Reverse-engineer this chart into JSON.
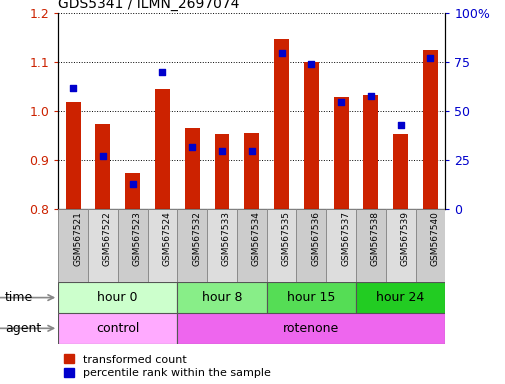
{
  "title": "GDS5341 / ILMN_2697074",
  "samples": [
    "GSM567521",
    "GSM567522",
    "GSM567523",
    "GSM567524",
    "GSM567532",
    "GSM567533",
    "GSM567534",
    "GSM567535",
    "GSM567536",
    "GSM567537",
    "GSM567538",
    "GSM567539",
    "GSM567540"
  ],
  "transformed_count": [
    1.02,
    0.975,
    0.875,
    1.045,
    0.965,
    0.953,
    0.955,
    1.148,
    1.1,
    1.03,
    1.033,
    0.953,
    1.125
  ],
  "percentile_rank": [
    62,
    27,
    13,
    70,
    32,
    30,
    30,
    80,
    74,
    55,
    58,
    43,
    77
  ],
  "ylim_left": [
    0.8,
    1.2
  ],
  "ylim_right": [
    0,
    100
  ],
  "yticks_left": [
    0.8,
    0.9,
    1.0,
    1.1,
    1.2
  ],
  "yticks_right": [
    0,
    25,
    50,
    75,
    100
  ],
  "yticklabels_right": [
    "0",
    "25",
    "50",
    "75",
    "100%"
  ],
  "bar_color": "#cc2200",
  "dot_color": "#0000cc",
  "bar_width": 0.5,
  "groups": [
    {
      "label": "hour 0",
      "start": 0,
      "end": 4,
      "color": "#ccffcc"
    },
    {
      "label": "hour 8",
      "start": 4,
      "end": 7,
      "color": "#88ee88"
    },
    {
      "label": "hour 15",
      "start": 7,
      "end": 10,
      "color": "#55dd55"
    },
    {
      "label": "hour 24",
      "start": 10,
      "end": 13,
      "color": "#22cc22"
    }
  ],
  "agents": [
    {
      "label": "control",
      "start": 0,
      "end": 4,
      "color": "#ffaaff"
    },
    {
      "label": "rotenone",
      "start": 4,
      "end": 13,
      "color": "#ee66ee"
    }
  ],
  "time_label": "time",
  "agent_label": "agent",
  "legend_red": "transformed count",
  "legend_blue": "percentile rank within the sample",
  "background_color": "#ffffff",
  "grid_color": "#000000",
  "tick_label_color_left": "#cc2200",
  "tick_label_color_right": "#0000cc",
  "xtick_bg_color": "#dddddd"
}
